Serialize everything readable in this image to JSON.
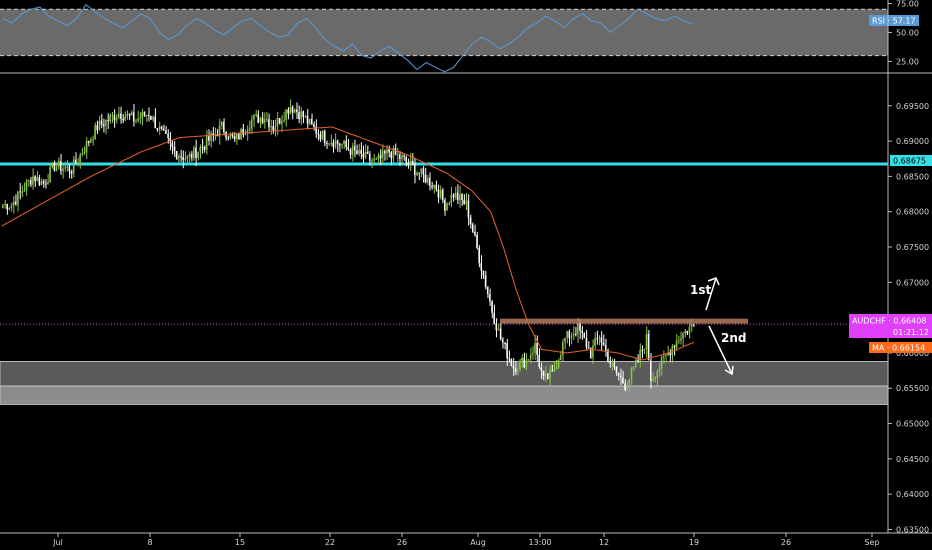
{
  "chart_data": {
    "type": "candlestick",
    "symbol": "AUDCHF",
    "colors": {
      "background": "#000000",
      "up": "#8bc34a",
      "down": "#ffffff",
      "ma": "#e8642a",
      "resistance": "#33e0e8",
      "zone_upper": "#5a5a5a",
      "zone_lower": "#8c8c8c",
      "neckline": "#b07a5a",
      "price_tag": "#e040fb",
      "ma_tag": "#ff6a1a",
      "rsi_line": "#5b9bd5",
      "rsi_band": "#6a6a6a",
      "rsi_tag": "#5b9bd5",
      "res_tag": "#33e0e8"
    },
    "price_axis": {
      "min": 0.6345,
      "max": 0.6995,
      "ticks": [
        "0.69500",
        "0.69000",
        "0.68500",
        "0.68000",
        "0.67500",
        "0.67000",
        "0.66500",
        "0.66000",
        "0.65500",
        "0.65000",
        "0.64500",
        "0.64000",
        "0.63500"
      ],
      "tick_values": [
        0.695,
        0.69,
        0.685,
        0.68,
        0.675,
        0.67,
        0.665,
        0.66,
        0.655,
        0.65,
        0.645,
        0.64,
        0.635
      ]
    },
    "time_axis": {
      "labels": [
        "Jul",
        "8",
        "15",
        "22",
        "26",
        "Aug",
        "13:00",
        "12",
        "19",
        "26",
        "Sep"
      ]
    },
    "price_path": [
      [
        0.681,
        5
      ],
      [
        0.685,
        10
      ],
      [
        0.684,
        5
      ],
      [
        0.6865,
        5
      ],
      [
        0.686,
        8
      ],
      [
        0.692,
        12
      ],
      [
        0.694,
        10
      ],
      [
        0.693,
        8
      ],
      [
        0.694,
        6
      ],
      [
        0.692,
        4
      ],
      [
        0.6885,
        8
      ],
      [
        0.6875,
        6
      ],
      [
        0.6895,
        8
      ],
      [
        0.692,
        8
      ],
      [
        0.69,
        6
      ],
      [
        0.693,
        8
      ],
      [
        0.6935,
        6
      ],
      [
        0.692,
        4
      ],
      [
        0.695,
        8
      ],
      [
        0.6935,
        6
      ],
      [
        0.692,
        4
      ],
      [
        0.6905,
        6
      ],
      [
        0.6895,
        8
      ],
      [
        0.688,
        8
      ],
      [
        0.687,
        8
      ],
      [
        0.6885,
        6
      ],
      [
        0.6875,
        6
      ],
      [
        0.6855,
        8
      ],
      [
        0.6835,
        8
      ],
      [
        0.681,
        4
      ],
      [
        0.6825,
        4
      ],
      [
        0.681,
        6
      ],
      [
        0.676,
        4
      ],
      [
        0.671,
        4
      ],
      [
        0.666,
        4
      ],
      [
        0.662,
        4
      ],
      [
        0.658,
        6
      ],
      [
        0.659,
        6
      ],
      [
        0.661,
        4
      ],
      [
        0.656,
        4
      ],
      [
        0.657,
        4
      ],
      [
        0.662,
        6
      ],
      [
        0.6635,
        6
      ],
      [
        0.66,
        6
      ],
      [
        0.6625,
        4
      ],
      [
        0.658,
        6
      ],
      [
        0.6555,
        6
      ],
      [
        0.6575,
        4
      ],
      [
        0.662,
        6
      ],
      [
        0.6565,
        2
      ],
      [
        0.658,
        4
      ],
      [
        0.661,
        6
      ],
      [
        0.6625,
        4
      ],
      [
        0.664,
        6
      ]
    ],
    "moving_average": {
      "name": "MA",
      "points": [
        [
          0.678,
          0
        ],
        [
          0.681,
          30
        ],
        [
          0.685,
          40
        ],
        [
          0.6885,
          40
        ],
        [
          0.6905,
          30
        ],
        [
          0.691,
          40
        ],
        [
          0.6915,
          40
        ],
        [
          0.692,
          40
        ],
        [
          0.69,
          30
        ],
        [
          0.688,
          30
        ],
        [
          0.6855,
          30
        ],
        [
          0.683,
          20
        ],
        [
          0.68,
          15
        ],
        [
          0.675,
          10
        ],
        [
          0.669,
          10
        ],
        [
          0.664,
          10
        ],
        [
          0.6605,
          10
        ],
        [
          0.66,
          20
        ],
        [
          0.6605,
          20
        ],
        [
          0.66,
          20
        ],
        [
          0.659,
          20
        ],
        [
          0.66,
          20
        ],
        [
          0.6615,
          20
        ]
      ],
      "last": "0.66154"
    },
    "levels": {
      "resistance": 0.68675,
      "neckline": 0.6645,
      "current": 0.66408
    },
    "zones": [
      {
        "top": 0.6588,
        "bottom": 0.6553
      },
      {
        "top": 0.6553,
        "bottom": 0.6527
      }
    ],
    "tags": {
      "resistance": "0.68675",
      "price": "AUDCHF · 0.66408",
      "countdown": "01:21:12",
      "ma": "MA · 0.66154",
      "rsi": "RSI · 57.17"
    },
    "annotations": {
      "first": "1st",
      "second": "2nd"
    },
    "rsi": {
      "upper": 70,
      "lower": 30,
      "ticks": [
        "75.00",
        "50.00",
        "25.00"
      ],
      "tick_values": [
        75,
        50,
        25
      ],
      "min": 15,
      "max": 78,
      "last": 57.17,
      "values": [
        62,
        58,
        66,
        70,
        72,
        64,
        60,
        56,
        62,
        74,
        68,
        62,
        58,
        54,
        60,
        66,
        62,
        50,
        44,
        48,
        56,
        62,
        58,
        52,
        48,
        54,
        60,
        62,
        56,
        50,
        46,
        48,
        58,
        62,
        54,
        44,
        38,
        34,
        40,
        30,
        28,
        34,
        38,
        32,
        26,
        18,
        24,
        20,
        16,
        20,
        30,
        40,
        46,
        42,
        36,
        40,
        46,
        54,
        58,
        64,
        60,
        54,
        62,
        66,
        60,
        58,
        50,
        56,
        62,
        70,
        66,
        62,
        60,
        64,
        60,
        57
      ]
    }
  }
}
